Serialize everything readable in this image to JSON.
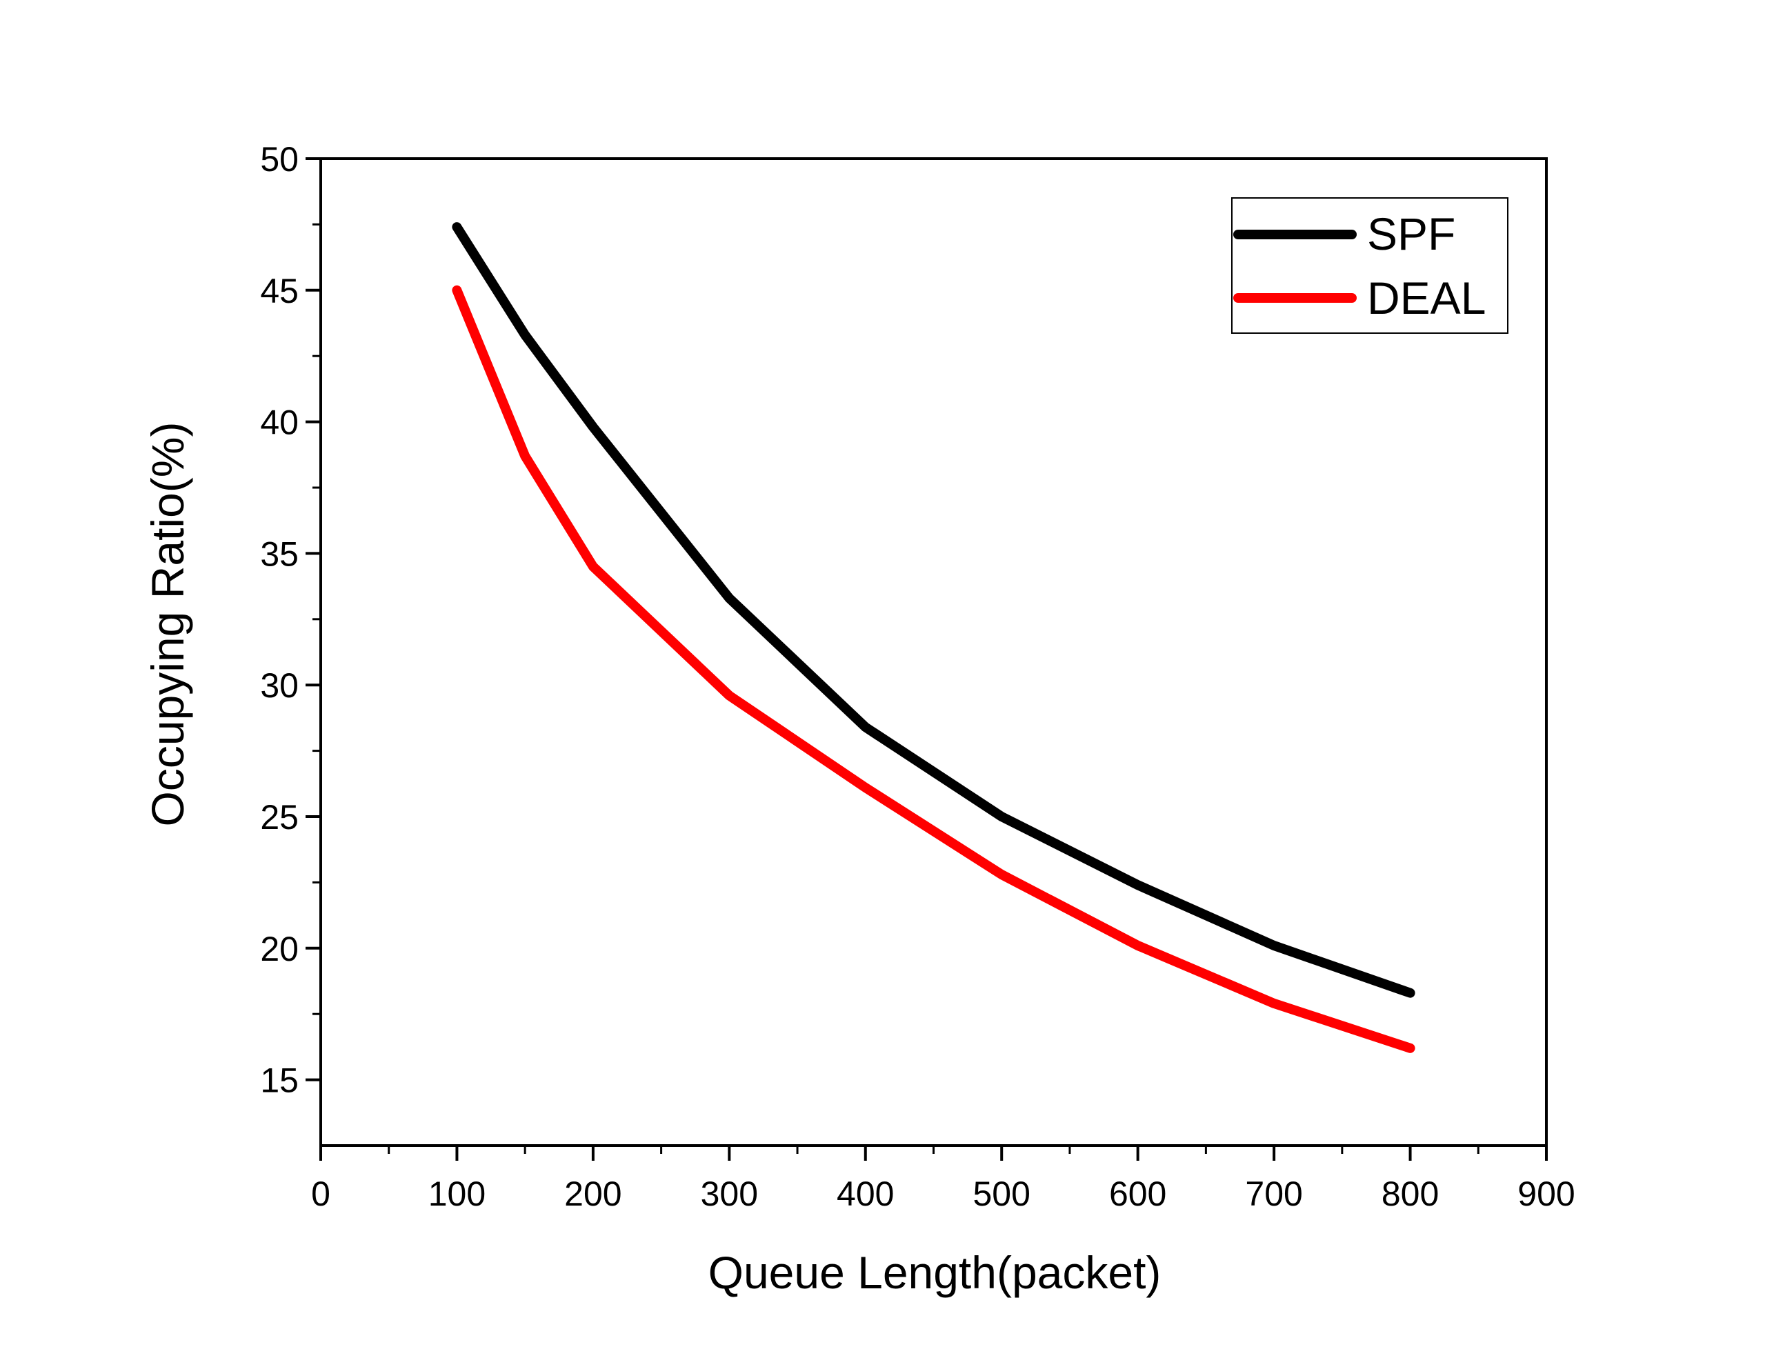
{
  "chart_data": {
    "type": "line",
    "title": "",
    "xlabel": "Queue Length(packet)",
    "ylabel": "Occupying Ratio(%)",
    "xlim": [
      0,
      900
    ],
    "ylim": [
      12.5,
      50
    ],
    "xticks": [
      "0",
      "100",
      "200",
      "300",
      "400",
      "500",
      "600",
      "700",
      "800",
      "900"
    ],
    "yticks": [
      "15",
      "20",
      "25",
      "30",
      "35",
      "40",
      "45",
      "50"
    ],
    "grid": false,
    "legend_position": "top-right",
    "series": [
      {
        "name": "SPF",
        "color": "#000000",
        "x": [
          100,
          150,
          200,
          300,
          400,
          500,
          600,
          700,
          800
        ],
        "y": [
          47.4,
          43.3,
          39.8,
          33.3,
          28.4,
          25.0,
          22.4,
          20.1,
          18.3
        ]
      },
      {
        "name": "DEAL",
        "color": "#ff0000",
        "x": [
          100,
          150,
          200,
          300,
          400,
          500,
          600,
          700,
          800
        ],
        "y": [
          45.0,
          38.7,
          34.5,
          29.6,
          26.1,
          22.8,
          20.1,
          17.9,
          16.2
        ]
      }
    ]
  }
}
